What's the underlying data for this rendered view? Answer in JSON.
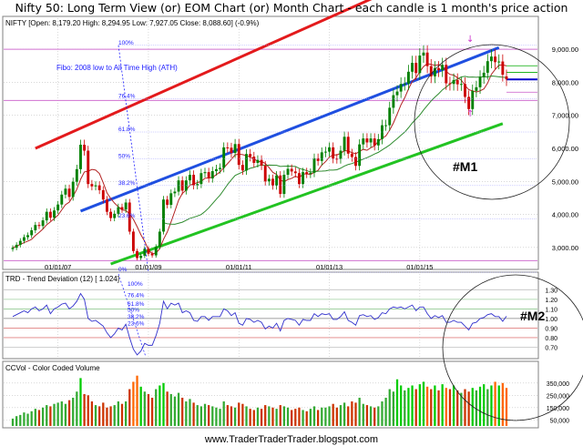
{
  "title": "Nifty 50: Long Term View (or) EOM Chart (or) Month Chart - each candle is 1 month's price action",
  "website": "www.TraderTraderTrader.blogspot.com",
  "colors": {
    "candle_up": "#008000",
    "candle_down": "#cc0000",
    "red_channel": "#e31a1c",
    "blue_channel": "#1f4fe0",
    "green_channel": "#22c322",
    "ma_red": "#b22222",
    "ma_green": "#2e8b2e",
    "fibo": "#1a1aff",
    "grid": "#c0c0c0",
    "pink": "#d070d0"
  },
  "chart_data": [
    {
      "type": "candlestick",
      "panel": "price",
      "header": "NIFTY [Open: 8,179.20  High: 8,294.95  Low: 7,927.05  Close: 8,088.60]  (-0.9%)",
      "x_ticks": [
        "01/01/07",
        "01/01/09",
        "01/01/11",
        "01/01/13",
        "01/01/15"
      ],
      "y_ticks": [
        "3,000.00",
        "4,000.00",
        "5,000.00",
        "6,000.00",
        "7,000.00",
        "8,000.00",
        "9,000.00"
      ],
      "ylim": [
        2500,
        9500
      ],
      "fibo": {
        "label": "Fibo: 2008 low to All Time High (ATH)",
        "levels": [
          "100%",
          "76.4%",
          "61.8%",
          "50%",
          "38.2%",
          "23.6%",
          "0%"
        ]
      },
      "annotations": [
        "#M1"
      ],
      "last_close": 8088.6,
      "closes": [
        2990,
        3080,
        3200,
        3310,
        3370,
        3520,
        3680,
        3650,
        3820,
        4080,
        3900,
        4120,
        4300,
        4600,
        4780,
        4530,
        4990,
        5370,
        6110,
        5930,
        4920,
        4850,
        4880,
        4735,
        4450,
        4080,
        3890,
        4020,
        4220,
        4150,
        4360,
        3480,
        2890,
        2680,
        2750,
        2960,
        2810,
        2760,
        3020,
        3480,
        4450,
        4290,
        4640,
        4690,
        5030,
        4720,
        5030,
        5200,
        4880,
        4920,
        5250,
        5280,
        5090,
        5310,
        5370,
        5410,
        6030,
        6020,
        5860,
        6130,
        5500,
        5330,
        5830,
        5750,
        5560,
        5650,
        5480,
        5000,
        5080,
        4870,
        5180,
        4620,
        5200,
        5380,
        5300,
        5250,
        4920,
        5280,
        5230,
        5260,
        5700,
        5620,
        5880,
        5900,
        6030,
        5690,
        5680,
        5930,
        6350,
        5840,
        5740,
        5470,
        6120,
        6300,
        6180,
        6300,
        6090,
        6280,
        6700,
        6700,
        7230,
        7610,
        7720,
        7950,
        7960,
        8320,
        8590,
        8280,
        8810,
        8900,
        8490,
        8180,
        8430,
        8370,
        8530,
        7970,
        7950,
        8070,
        7940,
        7950,
        7560,
        7190,
        7740,
        7850,
        8160,
        8290,
        8640,
        8780,
        8610,
        8630,
        8230,
        8090
      ],
      "opens": [
        2950,
        2990,
        3080,
        3200,
        3310,
        3370,
        3520,
        3680,
        3650,
        3820,
        4080,
        3900,
        4120,
        4300,
        4600,
        4780,
        4530,
        4990,
        5370,
        6110,
        5930,
        4920,
        4850,
        4880,
        4735,
        4450,
        4080,
        3890,
        4020,
        4220,
        4150,
        4360,
        3480,
        2890,
        2680,
        2750,
        2960,
        2810,
        2760,
        3020,
        3480,
        4450,
        4290,
        4640,
        4690,
        5030,
        4720,
        5030,
        5200,
        4880,
        4920,
        5250,
        5280,
        5090,
        5310,
        5370,
        5410,
        6030,
        6020,
        5860,
        6130,
        5500,
        5330,
        5830,
        5750,
        5560,
        5650,
        5480,
        5000,
        5080,
        4870,
        5180,
        4620,
        5200,
        5380,
        5300,
        5250,
        4920,
        5280,
        5230,
        5260,
        5700,
        5620,
        5880,
        5900,
        6030,
        5690,
        5680,
        5930,
        6350,
        5840,
        5740,
        5470,
        6120,
        6300,
        6180,
        6300,
        6090,
        6280,
        6700,
        6700,
        7230,
        7610,
        7720,
        7950,
        7960,
        8320,
        8590,
        8280,
        8810,
        8900,
        8490,
        8180,
        8430,
        8370,
        8530,
        7970,
        7950,
        8070,
        7940,
        7950,
        7560,
        7190,
        7740,
        7850,
        8160,
        8290,
        8640,
        8780,
        8610,
        8630,
        8179.2
      ]
    },
    {
      "type": "line",
      "panel": "indicator",
      "header": "TRD - Trend Deviation (12) [ 1.024]",
      "y_ticks": [
        "1.30",
        "1.20",
        "1.10",
        "1.00",
        "0.90",
        "0.80",
        "0.70"
      ],
      "ylim": [
        0.6,
        1.36
      ],
      "fibo_levels": [
        "100%",
        "76.4%",
        "61.8%",
        "50%",
        "38.2%",
        "23.6%"
      ],
      "annotations": [
        "#M2"
      ],
      "last_value": 1.024,
      "values": [
        1.02,
        1.04,
        1.06,
        1.08,
        1.06,
        1.1,
        1.12,
        1.08,
        1.1,
        1.14,
        1.05,
        1.1,
        1.12,
        1.15,
        1.16,
        1.1,
        1.13,
        1.18,
        1.26,
        1.2,
        1.0,
        0.97,
        0.98,
        0.95,
        0.92,
        0.85,
        0.8,
        0.84,
        0.9,
        0.88,
        0.94,
        0.8,
        0.68,
        0.62,
        0.66,
        0.74,
        0.72,
        0.72,
        0.82,
        0.95,
        1.18,
        1.1,
        1.16,
        1.14,
        1.16,
        1.06,
        1.08,
        1.06,
        0.98,
        0.97,
        1.02,
        1.02,
        0.98,
        1.02,
        1.02,
        1.02,
        1.1,
        1.08,
        1.03,
        1.06,
        0.95,
        0.93,
        1.0,
        0.99,
        0.96,
        0.98,
        0.96,
        0.89,
        0.92,
        0.9,
        0.95,
        0.87,
        0.98,
        1.0,
        0.99,
        0.98,
        0.93,
        0.99,
        0.98,
        0.98,
        1.05,
        1.02,
        1.05,
        1.04,
        1.05,
        0.99,
        0.99,
        1.02,
        1.07,
        0.98,
        0.96,
        0.93,
        1.03,
        1.04,
        1.02,
        1.03,
        0.99,
        1.01,
        1.06,
        1.05,
        1.1,
        1.12,
        1.11,
        1.12,
        1.1,
        1.12,
        1.14,
        1.08,
        1.12,
        1.12,
        1.05,
        1.0,
        1.03,
        1.01,
        1.03,
        0.96,
        0.96,
        0.98,
        0.96,
        0.96,
        0.92,
        0.88,
        0.95,
        0.96,
        1.0,
        1.01,
        1.04,
        1.05,
        1.02,
        1.02,
        0.97,
        1.024
      ]
    },
    {
      "type": "bar",
      "panel": "volume",
      "header": "CCVol - Color Coded Volume",
      "y_ticks": [
        "350,000",
        "250,000",
        "150,000",
        "50,000"
      ],
      "ylim": [
        0,
        430000
      ],
      "values": [
        60000,
        80000,
        90000,
        110000,
        100000,
        120000,
        140000,
        130000,
        150000,
        170000,
        160000,
        180000,
        190000,
        200000,
        180000,
        210000,
        230000,
        280000,
        390000,
        260000,
        250000,
        200000,
        170000,
        160000,
        190000,
        150000,
        160000,
        170000,
        200000,
        180000,
        200000,
        300000,
        360000,
        410000,
        320000,
        280000,
        260000,
        230000,
        300000,
        330000,
        350000,
        280000,
        260000,
        240000,
        270000,
        230000,
        200000,
        220000,
        190000,
        170000,
        160000,
        180000,
        170000,
        160000,
        150000,
        140000,
        200000,
        170000,
        160000,
        150000,
        190000,
        180000,
        160000,
        140000,
        130000,
        150000,
        140000,
        170000,
        160000,
        150000,
        140000,
        170000,
        160000,
        150000,
        130000,
        140000,
        150000,
        130000,
        120000,
        140000,
        160000,
        130000,
        150000,
        150000,
        160000,
        180000,
        150000,
        170000,
        190000,
        160000,
        200000,
        190000,
        230000,
        180000,
        170000,
        160000,
        150000,
        160000,
        200000,
        230000,
        300000,
        280000,
        380000,
        330000,
        290000,
        310000,
        330000,
        300000,
        340000,
        360000,
        320000,
        300000,
        330000,
        290000,
        340000,
        310000,
        300000,
        330000,
        290000,
        270000,
        300000,
        280000,
        310000,
        290000,
        320000,
        340000,
        300000,
        330000,
        360000,
        330000,
        350000,
        310000
      ]
    }
  ]
}
